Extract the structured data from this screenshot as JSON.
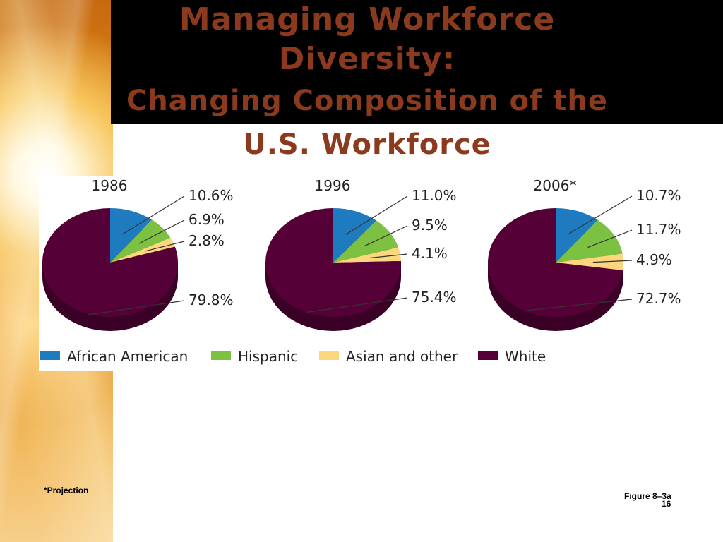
{
  "slide": {
    "title_line1": "Managing Workforce",
    "title_line2": "Diversity:",
    "title_line3": "Changing Composition of the",
    "title_line4": "U.S. Workforce",
    "footnote": "*Projection",
    "figure_label": "Figure 8–3a",
    "page_number": "16"
  },
  "colors": {
    "title": "#8b3a1e",
    "african_american": "#1f7bc0",
    "hispanic": "#7dc142",
    "asian_other": "#fdd77e",
    "white": "#560038",
    "white_side": "#3a0026"
  },
  "chart_data": {
    "type": "pie",
    "legend": {
      "placement": "bottom",
      "entries": [
        "African American",
        "Hispanic",
        "Asian and other",
        "White"
      ]
    },
    "charts": [
      {
        "title": "1986",
        "slices": [
          {
            "name": "African American",
            "value": 10.6,
            "label": "10.6%"
          },
          {
            "name": "Hispanic",
            "value": 6.9,
            "label": "6.9%"
          },
          {
            "name": "Asian and other",
            "value": 2.8,
            "label": "2.8%"
          },
          {
            "name": "White",
            "value": 79.8,
            "label": "79.8%"
          }
        ]
      },
      {
        "title": "1996",
        "slices": [
          {
            "name": "African American",
            "value": 11.0,
            "label": "11.0%"
          },
          {
            "name": "Hispanic",
            "value": 9.5,
            "label": "9.5%"
          },
          {
            "name": "Asian and other",
            "value": 4.1,
            "label": "4.1%"
          },
          {
            "name": "White",
            "value": 75.4,
            "label": "75.4%"
          }
        ]
      },
      {
        "title": "2006*",
        "slices": [
          {
            "name": "African American",
            "value": 10.7,
            "label": "10.7%"
          },
          {
            "name": "Hispanic",
            "value": 11.7,
            "label": "11.7%"
          },
          {
            "name": "Asian and other",
            "value": 4.9,
            "label": "4.9%"
          },
          {
            "name": "White",
            "value": 72.7,
            "label": "72.7%"
          }
        ]
      }
    ]
  }
}
